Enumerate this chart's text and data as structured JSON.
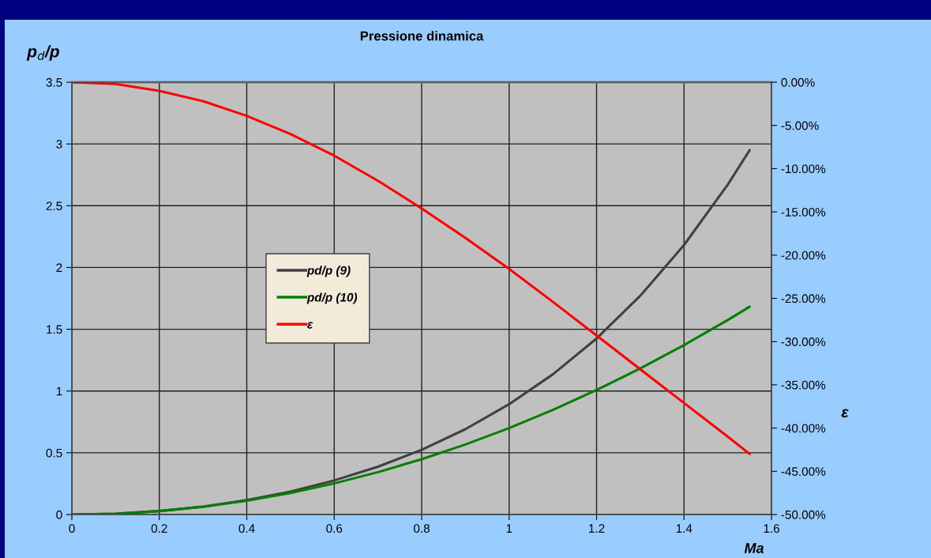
{
  "chart_data": {
    "type": "line",
    "title": "Pressione dinamica",
    "xlabel": "Ma",
    "ylabel": "p$_{d}$/p",
    "y2label": "ε",
    "x": [
      0,
      0.1,
      0.2,
      0.3,
      0.4,
      0.5,
      0.6,
      0.7,
      0.8,
      0.9,
      1.0,
      1.1,
      1.2,
      1.3,
      1.4,
      1.5,
      1.55
    ],
    "series": [
      {
        "name": "pd/p (9)",
        "color": "#404040",
        "values": [
          0,
          0.007,
          0.028,
          0.064,
          0.117,
          0.186,
          0.276,
          0.387,
          0.524,
          0.691,
          0.893,
          1.135,
          1.425,
          1.771,
          2.182,
          2.671,
          2.95
        ]
      },
      {
        "name": "pd/p (10)",
        "color": "#008000",
        "values": [
          0,
          0.007,
          0.028,
          0.063,
          0.112,
          0.175,
          0.252,
          0.343,
          0.448,
          0.567,
          0.7,
          0.847,
          1.008,
          1.183,
          1.372,
          1.575,
          1.682
        ]
      },
      {
        "name": "ε",
        "color": "#ff0000",
        "axis": "y2",
        "values": [
          0,
          -0.2,
          -1.0,
          -2.2,
          -3.9,
          -6.0,
          -8.5,
          -11.4,
          -14.6,
          -18.0,
          -21.6,
          -25.4,
          -29.3,
          -33.2,
          -37.1,
          -41.0,
          -43.0
        ]
      }
    ],
    "xlim": [
      0,
      1.6
    ],
    "xticks": [
      0,
      0.2,
      0.4,
      0.6,
      0.8,
      1,
      1.2,
      1.4,
      1.6
    ],
    "ylim": [
      0,
      3.5
    ],
    "yticks": [
      0,
      0.5,
      1,
      1.5,
      2,
      2.5,
      3,
      3.5
    ],
    "y2lim": [
      -50,
      0
    ],
    "y2ticks": [
      {
        "value": -50,
        "label": "-50.00%"
      },
      {
        "value": -45,
        "label": "-45.00%"
      },
      {
        "value": -40,
        "label": "-40.00%"
      },
      {
        "value": -35,
        "label": "-35.00%"
      },
      {
        "value": -30,
        "label": "-30.00%"
      },
      {
        "value": -25,
        "label": "-25.00%"
      },
      {
        "value": -20,
        "label": "-20.00%"
      },
      {
        "value": -15,
        "label": "-15.00%"
      },
      {
        "value": -10,
        "label": "-10.00%"
      },
      {
        "value": -5,
        "label": "-5.00%"
      },
      {
        "value": 0,
        "label": "0.00%"
      }
    ],
    "grid": true,
    "legend": "center left",
    "marker": "none",
    "line_style": "solid"
  }
}
